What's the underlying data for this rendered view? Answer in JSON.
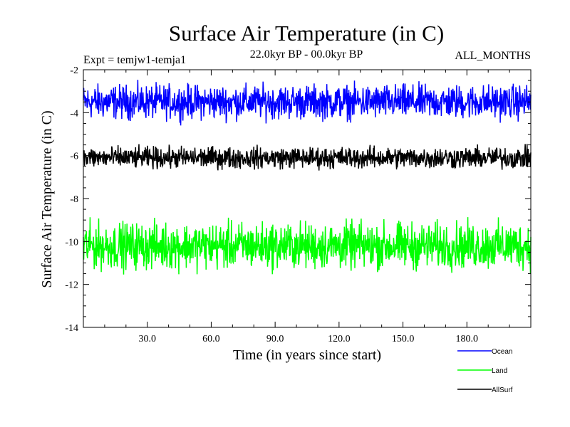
{
  "chart_data": {
    "type": "line",
    "title": "Surface Air Temperature (in C)",
    "subtitle": "22.0kyr BP - 00.0kyr BP",
    "experiment_label": "Expt = temjw1-temja1",
    "months_label": "ALL_MONTHS",
    "xlabel": "Time (in years since start)",
    "ylabel": "Surface Air Temperature (in C)",
    "xlim": [
      0,
      210
    ],
    "ylim": [
      -14,
      -2
    ],
    "xticks": [
      30,
      60,
      90,
      120,
      150,
      180
    ],
    "xtick_labels": [
      "30.0",
      "60.0",
      "90.0",
      "120.0",
      "150.0",
      "180.0"
    ],
    "yticks": [
      -14,
      -12,
      -10,
      -8,
      -6,
      -4,
      -2
    ],
    "ytick_labels": [
      "-14",
      "-12",
      "-10",
      "-8",
      "-6",
      "-4",
      "-2"
    ],
    "series": [
      {
        "name": "Ocean",
        "color": "#0000ff",
        "mean": -3.5,
        "spread": 0.55,
        "min": -4.9,
        "max": -2.4
      },
      {
        "name": "Land",
        "color": "#00ff00",
        "mean": -10.2,
        "spread": 0.75,
        "min": -12.2,
        "max": -8.1
      },
      {
        "name": "AllSurf",
        "color": "#000000",
        "mean": -6.1,
        "spread": 0.35,
        "min": -7.3,
        "max": -5.1
      }
    ],
    "legend_position": "bottom-right",
    "grid": false
  }
}
